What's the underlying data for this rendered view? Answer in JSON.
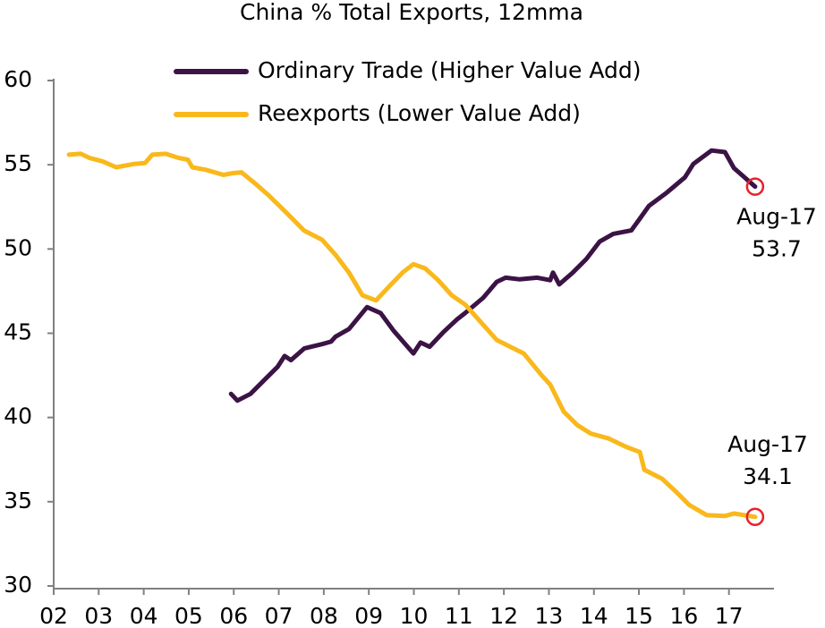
{
  "chart_data": {
    "type": "line",
    "title": "China % Total Exports, 12mma",
    "xlim": [
      2002,
      2018
    ],
    "xticks": [
      {
        "value": 2002,
        "label": "02"
      },
      {
        "value": 2003,
        "label": "03"
      },
      {
        "value": 2004,
        "label": "04"
      },
      {
        "value": 2005,
        "label": "05"
      },
      {
        "value": 2006,
        "label": "06"
      },
      {
        "value": 2007,
        "label": "07"
      },
      {
        "value": 2008,
        "label": "08"
      },
      {
        "value": 2009,
        "label": "09"
      },
      {
        "value": 2010,
        "label": "10"
      },
      {
        "value": 2011,
        "label": "11"
      },
      {
        "value": 2012,
        "label": "12"
      },
      {
        "value": 2013,
        "label": "13"
      },
      {
        "value": 2014,
        "label": "14"
      },
      {
        "value": 2015,
        "label": "15"
      },
      {
        "value": 2016,
        "label": "16"
      },
      {
        "value": 2017,
        "label": "17"
      }
    ],
    "ylim": [
      30,
      60
    ],
    "yticks": [
      30,
      35,
      40,
      45,
      50,
      55,
      60
    ],
    "grid": false,
    "legend": "top",
    "series": [
      {
        "name": "Ordinary Trade (Higher Value Add)",
        "color": "#3b1345",
        "x": [
          2005.94,
          2006.08,
          2006.37,
          2006.67,
          2006.97,
          2007.13,
          2007.27,
          2007.57,
          2007.96,
          2008.16,
          2008.26,
          2008.56,
          2008.96,
          2009.26,
          2009.55,
          2009.99,
          2010.15,
          2010.35,
          2010.65,
          2010.95,
          2011.14,
          2011.54,
          2011.84,
          2012.04,
          2012.34,
          2012.74,
          2013.03,
          2013.09,
          2013.23,
          2013.53,
          2013.83,
          2014.13,
          2014.43,
          2014.83,
          2015.02,
          2015.22,
          2015.62,
          2016.02,
          2016.21,
          2016.61,
          2016.91,
          2017.11,
          2017.58
        ],
        "values": [
          41.4,
          41.0,
          41.4,
          42.2,
          43.0,
          43.65,
          43.4,
          44.1,
          44.35,
          44.5,
          44.8,
          45.25,
          46.55,
          46.2,
          45.15,
          43.8,
          44.45,
          44.2,
          45.05,
          45.8,
          46.2,
          47.1,
          48.05,
          48.3,
          48.2,
          48.3,
          48.15,
          48.6,
          47.9,
          48.6,
          49.4,
          50.45,
          50.9,
          51.1,
          51.8,
          52.55,
          53.35,
          54.25,
          55.05,
          55.85,
          55.75,
          54.8,
          53.7
        ]
      },
      {
        "name": "Reexports (Lower Value Add)",
        "color": "#f9b81b",
        "x": [
          2002.34,
          2002.6,
          2002.8,
          2003.09,
          2003.39,
          2003.79,
          2004.03,
          2004.19,
          2004.49,
          2004.78,
          2004.98,
          2005.08,
          2005.38,
          2005.77,
          2005.97,
          2006.17,
          2006.47,
          2006.77,
          2007.17,
          2007.56,
          2007.96,
          2008.26,
          2008.56,
          2008.86,
          2009.16,
          2009.46,
          2009.75,
          2009.99,
          2010.25,
          2010.54,
          2010.84,
          2011.14,
          2011.44,
          2011.84,
          2012.14,
          2012.44,
          2012.84,
          2013.03,
          2013.33,
          2013.63,
          2013.93,
          2014.33,
          2014.72,
          2015.02,
          2015.12,
          2015.52,
          2015.82,
          2016.12,
          2016.51,
          2016.91,
          2017.11,
          2017.58
        ],
        "values": [
          55.6,
          55.65,
          55.4,
          55.2,
          54.85,
          55.05,
          55.1,
          55.6,
          55.65,
          55.4,
          55.3,
          54.85,
          54.7,
          54.4,
          54.5,
          54.55,
          53.9,
          53.2,
          52.15,
          51.1,
          50.55,
          49.65,
          48.6,
          47.25,
          46.95,
          47.8,
          48.6,
          49.1,
          48.85,
          48.15,
          47.25,
          46.7,
          45.8,
          44.6,
          44.2,
          43.8,
          42.5,
          41.95,
          40.35,
          39.55,
          39.05,
          38.75,
          38.25,
          37.95,
          36.9,
          36.35,
          35.6,
          34.8,
          34.2,
          34.15,
          34.3,
          34.1
        ]
      }
    ],
    "annotations": [
      {
        "label": "Aug-17",
        "x": 2017.58,
        "value": 53.7,
        "color": "#e8202a"
      },
      {
        "label": "Aug-17",
        "x": 2017.58,
        "value": 34.1,
        "color": "#e8202a"
      }
    ]
  }
}
